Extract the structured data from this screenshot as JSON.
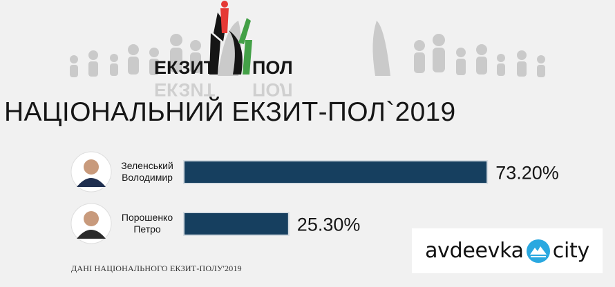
{
  "logo": {
    "left_text": "ЕКЗИТ",
    "right_text": "ПОЛ",
    "colors": {
      "red": "#e53935",
      "green": "#43a047",
      "black": "#151515",
      "grey": "#bdbdbd"
    }
  },
  "title": "НАЦІОНАЛЬНИЙ ЕКЗИТ-ПОЛ`2019",
  "chart_data": {
    "type": "bar",
    "orientation": "horizontal",
    "categories": [
      "Зеленський Володимир",
      "Порошенко Петро"
    ],
    "category_lines": [
      [
        "Зеленський",
        "Володимир"
      ],
      [
        "Порошенко",
        "Петро"
      ]
    ],
    "values": [
      73.2,
      25.3
    ],
    "value_labels": [
      "73.20%",
      "25.30%"
    ],
    "xlim": [
      0,
      100
    ],
    "bar_color": "#163f5f",
    "grid": false
  },
  "footer_note": "ДАНІ НАЦІОНАЛЬНОГО ЕКЗИТ-ПОЛУ'2019",
  "watermark": {
    "left_text": "avdeevka",
    "right_text": "city"
  }
}
